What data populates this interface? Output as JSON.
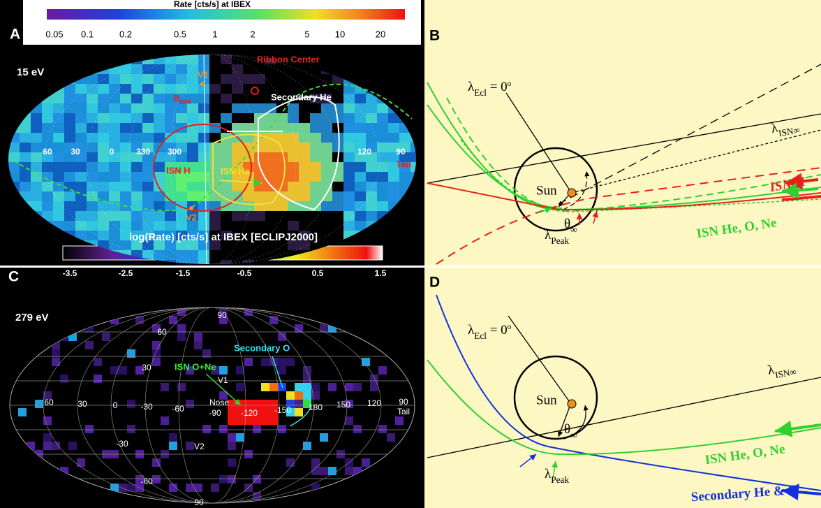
{
  "panel_a": {
    "letter": "A",
    "colorbar_title": "Rate [cts/s] at IBEX",
    "colorbar_ticks": [
      "0.05",
      "0.1",
      "0.2",
      "0.5",
      "1",
      "2",
      "5",
      "10",
      "20"
    ],
    "energy": "15 eV",
    "ribbon_center": "Ribbon Center",
    "v1": "V1",
    "v2": "V2",
    "b_ism": {
      "main": "B",
      "sub": "ISM"
    },
    "secondary": "Secondary He",
    "isn_h": "ISN H",
    "isn_he": "ISN He",
    "longitudes": [
      "60",
      "30",
      "0",
      "330",
      "300",
      "120",
      "90"
    ],
    "tail": "Tail"
  },
  "panel_b": {
    "letter": "B",
    "lambda_ecl": {
      "sym": "λ",
      "sub": "Ecl",
      "eq": " = 0",
      "sup": "o"
    },
    "lambda_isn": {
      "sym": "λ",
      "sub": "ISN∞"
    },
    "sun": "Sun",
    "theta": {
      "sym": "θ",
      "sub": "∞"
    },
    "isn_h": "ISN H",
    "isn_he_o_ne": "ISN He, O, Ne",
    "lambda_peak": {
      "sym": "λ",
      "sub": "Peak"
    }
  },
  "panel_c": {
    "letter": "C",
    "colorbar_title": "log(Rate) [cts/s] at IBEX [ECLIPJ2000]",
    "colorbar_ticks": [
      "-3.5",
      "-2.5",
      "-1.5",
      "-0.5",
      "0.5",
      "1.5"
    ],
    "energy": "279 eV",
    "secondary": "Secondary O",
    "isn": "ISN O+Ne",
    "v1": "V1",
    "v2": "V2",
    "nose": "Nose",
    "tail": "Tail",
    "grid_labels": [
      "90",
      "60",
      "30",
      "60",
      "30",
      "0",
      "-30",
      "-60",
      "-90",
      "-120",
      "-150",
      "180",
      "150",
      "120",
      "90",
      "-30",
      "-60",
      "90"
    ]
  },
  "panel_d": {
    "letter": "D",
    "lambda_ecl": {
      "sym": "λ",
      "sub": "Ecl",
      "eq": " = 0",
      "sup": "o"
    },
    "lambda_isn": {
      "sym": "λ",
      "sub": "ISN∞"
    },
    "sun": "Sun",
    "theta": {
      "sym": "θ",
      "sub": "∞"
    },
    "isn_he_o_ne": "ISN He, O, Ne",
    "lambda_peak": {
      "sym": "λ",
      "sub": "Peak"
    },
    "secondary": "Secondary He & O"
  }
}
